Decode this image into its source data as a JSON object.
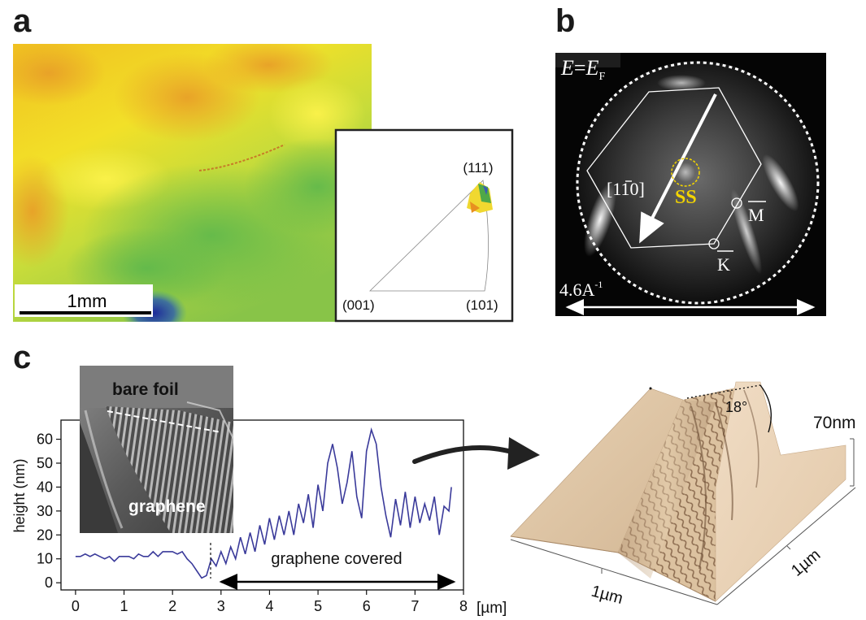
{
  "figure": {
    "panel_a": {
      "letter": "a",
      "scale_bar_label": "1mm",
      "ipf": {
        "labels": [
          "(111)",
          "(001)",
          "(101)"
        ]
      }
    },
    "panel_b": {
      "letter": "b",
      "energy_label_e": "E",
      "energy_label_eq": "=",
      "energy_label_ef": "E",
      "energy_label_sub": "F",
      "direction_label": "[110]",
      "ss_label": "SS",
      "m_label": "M",
      "k_label": "K",
      "scale_label": "4.6A",
      "scale_exp": "-1"
    },
    "panel_c": {
      "letter": "c",
      "inset_top_label": "bare foil",
      "inset_bottom_label": "graphene",
      "covered_label": "graphene covered",
      "x_unit": "[µm]",
      "afm_angle": "18°",
      "afm_height": "70nm",
      "afm_x_label": "1µm",
      "afm_y_label": "1µm"
    }
  },
  "chart_data": {
    "type": "line",
    "ylabel": "height (nm)",
    "xlabel": "[µm]",
    "xlim": [
      -0.3,
      8.0
    ],
    "ylim": [
      -3,
      68
    ],
    "xticks": [
      0,
      1,
      2,
      3,
      4,
      5,
      6,
      7,
      8
    ],
    "yticks": [
      0,
      10,
      20,
      30,
      40,
      50,
      60
    ],
    "color": "#3a3a9a",
    "series": [
      {
        "x": [
          0,
          0.1,
          0.2,
          0.3,
          0.4,
          0.5,
          0.6,
          0.7,
          0.8,
          0.9,
          1.0,
          1.1,
          1.2,
          1.3,
          1.4,
          1.5,
          1.6,
          1.7,
          1.8,
          1.9,
          2.0,
          2.1,
          2.2,
          2.3,
          2.4,
          2.5,
          2.6,
          2.7,
          2.8,
          2.9,
          3.0,
          3.1,
          3.2,
          3.3,
          3.4,
          3.5,
          3.6,
          3.7,
          3.8,
          3.9,
          4.0,
          4.1,
          4.2,
          4.3,
          4.4,
          4.5,
          4.6,
          4.7,
          4.8,
          4.9,
          5.0,
          5.1,
          5.2,
          5.3,
          5.4,
          5.5,
          5.6,
          5.7,
          5.8,
          5.9,
          6.0,
          6.1,
          6.2,
          6.3,
          6.4,
          6.5,
          6.6,
          6.7,
          6.8,
          6.9,
          7.0,
          7.1,
          7.2,
          7.3,
          7.4,
          7.5,
          7.6,
          7.7,
          7.75
        ],
        "y": [
          11,
          11,
          12,
          11,
          12,
          11,
          10,
          11,
          9,
          11,
          11,
          11,
          10,
          12,
          11,
          11,
          13,
          11,
          13,
          13,
          13,
          12,
          13,
          10,
          8,
          5,
          2,
          3,
          10,
          7,
          13,
          8,
          15,
          10,
          19,
          12,
          21,
          13,
          24,
          16,
          27,
          18,
          28,
          20,
          30,
          20,
          33,
          25,
          37,
          23,
          41,
          30,
          50,
          58,
          48,
          33,
          42,
          55,
          36,
          27,
          55,
          64,
          58,
          40,
          28,
          19,
          35,
          24,
          38,
          23,
          36,
          25,
          33,
          26,
          36,
          20,
          32,
          30,
          40
        ]
      }
    ]
  }
}
